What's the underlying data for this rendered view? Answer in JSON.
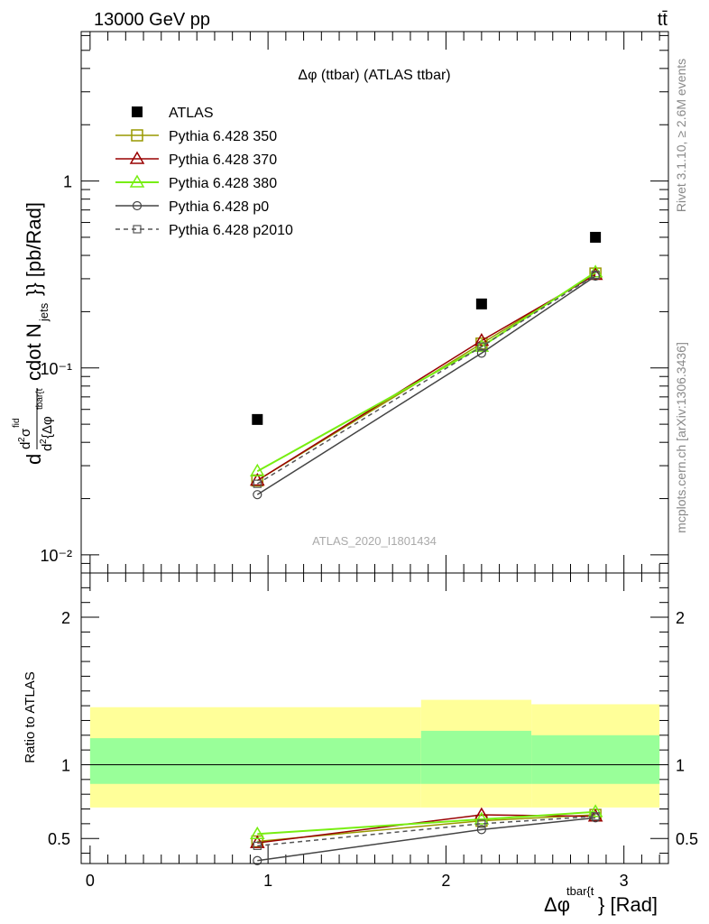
{
  "header": {
    "left": "13000 GeV pp",
    "right": "tt̄"
  },
  "side_labels": {
    "rivet": "Rivet 3.1.10, ≥ 2.6M events",
    "mcplots": "mcplots.cern.ch [arXiv:1306.3436]"
  },
  "chart_data": [
    {
      "type": "scatter",
      "title": "Δφ (ttbar) (ATLAS ttbar)",
      "watermark": "ATLAS_2020_I1801434",
      "ylabel": "d²σ^fid / d² {Δφ^{tbar{t}} cdot N_jets}} [pb/Rad]",
      "yscale": "log",
      "ylim": [
        0.008,
        6.3
      ],
      "xlim": [
        -0.05,
        3.25
      ],
      "ytick_labels": [
        "10⁻²",
        "10⁻¹",
        "1"
      ],
      "legend_position": "top-left",
      "x": [
        0.94,
        2.2,
        2.84
      ],
      "series": [
        {
          "name": "ATLAS",
          "color": "#000000",
          "marker": "filled-square",
          "line": "none",
          "values": [
            0.053,
            0.22,
            0.5
          ]
        },
        {
          "name": "Pythia 6.428 350",
          "color": "#999900",
          "marker": "open-square",
          "line": "solid",
          "values": [
            0.025,
            0.135,
            0.32
          ]
        },
        {
          "name": "Pythia 6.428 370",
          "color": "#990000",
          "marker": "open-triangle",
          "line": "solid",
          "values": [
            0.025,
            0.14,
            0.315
          ]
        },
        {
          "name": "Pythia 6.428 380",
          "color": "#77ee11",
          "marker": "open-triangle",
          "line": "solid",
          "values": [
            0.028,
            0.13,
            0.325
          ]
        },
        {
          "name": "Pythia 6.428 p0",
          "color": "#444444",
          "marker": "open-circle",
          "line": "solid",
          "values": [
            0.021,
            0.12,
            0.31
          ]
        },
        {
          "name": "Pythia 6.428 p2010",
          "color": "#555555",
          "marker": "open-square-small",
          "line": "dashed",
          "values": [
            0.024,
            0.13,
            0.315
          ]
        }
      ]
    },
    {
      "type": "line",
      "ylabel": "Ratio to ATLAS",
      "xlabel": "Δφ^{tbar{t}} [Rad]",
      "ylim": [
        0.33,
        2.3
      ],
      "xlim": [
        -0.05,
        3.25
      ],
      "xtick_labels": [
        "0",
        "1",
        "2",
        "3"
      ],
      "ytick_labels": [
        "0.5",
        "1",
        "2"
      ],
      "bands": [
        {
          "x_range": [
            0,
            1.86
          ],
          "yellow": [
            0.71,
            1.39
          ],
          "green": [
            0.87,
            1.18
          ]
        },
        {
          "x_range": [
            1.86,
            2.48
          ],
          "yellow": [
            0.71,
            1.44
          ],
          "green": [
            0.87,
            1.23
          ]
        },
        {
          "x_range": [
            2.48,
            3.2
          ],
          "yellow": [
            0.71,
            1.41
          ],
          "green": [
            0.87,
            1.2
          ]
        }
      ],
      "band_colors": {
        "yellow": "#ffff99",
        "green": "#99ff99"
      },
      "reference_line": 1,
      "x": [
        0.94,
        2.2,
        2.84
      ],
      "series": [
        {
          "name": "Pythia 6.428 350",
          "color": "#999900",
          "marker": "open-square",
          "line": "solid",
          "values": [
            0.48,
            0.62,
            0.66
          ]
        },
        {
          "name": "Pythia 6.428 370",
          "color": "#990000",
          "marker": "open-triangle",
          "line": "solid",
          "values": [
            0.47,
            0.66,
            0.65
          ]
        },
        {
          "name": "Pythia 6.428 380",
          "color": "#77ee11",
          "marker": "open-triangle",
          "line": "solid",
          "values": [
            0.53,
            0.63,
            0.68
          ]
        },
        {
          "name": "Pythia 6.428 p0",
          "color": "#444444",
          "marker": "open-circle",
          "line": "solid",
          "values": [
            0.35,
            0.56,
            0.64
          ]
        },
        {
          "name": "Pythia 6.428 p2010",
          "color": "#555555",
          "marker": "open-square-small",
          "line": "dashed",
          "values": [
            0.45,
            0.6,
            0.65
          ]
        }
      ]
    }
  ]
}
